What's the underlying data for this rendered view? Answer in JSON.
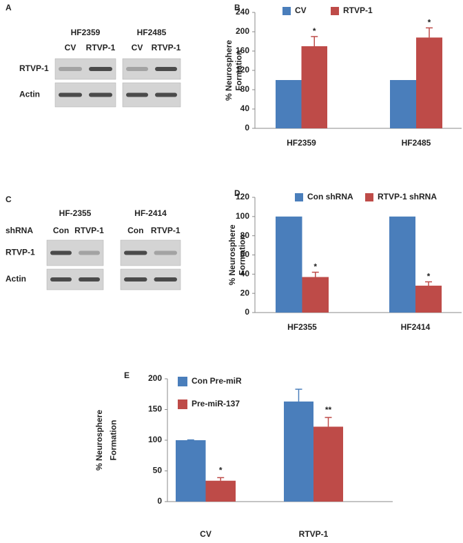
{
  "blots": [
    {
      "panel": "A",
      "groups": [
        {
          "name": "HF2359",
          "lanes": [
            "CV",
            "RTVP-1"
          ]
        },
        {
          "name": "HF2485",
          "lanes": [
            "CV",
            "RTVP-1"
          ]
        }
      ],
      "rows": [
        "RTVP-1",
        "Actin"
      ]
    },
    {
      "panel": "C",
      "row_header": "shRNA",
      "groups": [
        {
          "name": "HF-2355",
          "lanes": [
            "Con",
            "RTVP-1"
          ]
        },
        {
          "name": "HF-2414",
          "lanes": [
            "Con",
            "RTVP-1"
          ]
        }
      ],
      "rows": [
        "RTVP-1",
        "Actin"
      ]
    }
  ],
  "chart_data": [
    {
      "type": "bar",
      "panel": "B",
      "ylabel": [
        "% Neurosphere",
        "Formation"
      ],
      "categories": [
        "HF2359",
        "HF2485"
      ],
      "series": [
        {
          "name": "CV",
          "color": "#4a7ebb",
          "values": [
            100,
            100
          ]
        },
        {
          "name": "RTVP-1",
          "color": "#be4b48",
          "values": [
            170,
            188
          ],
          "errors": [
            20,
            20
          ],
          "annotations": [
            "*",
            "*"
          ]
        }
      ],
      "ylim": [
        0,
        240
      ],
      "yticks": [
        0,
        40,
        80,
        120,
        160,
        200,
        240
      ]
    },
    {
      "type": "bar",
      "panel": "D",
      "ylabel": [
        "% Neurosphere",
        "Formation"
      ],
      "categories": [
        "HF2355",
        "HF2414"
      ],
      "series": [
        {
          "name": "Con shRNA",
          "color": "#4a7ebb",
          "values": [
            100,
            100
          ]
        },
        {
          "name": "RTVP-1 shRNA",
          "color": "#be4b48",
          "values": [
            37,
            28
          ],
          "errors": [
            5,
            4
          ],
          "annotations": [
            "*",
            "*"
          ]
        }
      ],
      "ylim": [
        0,
        120
      ],
      "yticks": [
        0,
        20,
        40,
        60,
        80,
        100,
        120
      ]
    },
    {
      "type": "bar",
      "panel": "E",
      "ylabel": [
        "% Neurosphere",
        "Formation"
      ],
      "categories": [
        "CV",
        "RTVP-1"
      ],
      "series": [
        {
          "name": "Con Pre-miR",
          "color": "#4a7ebb",
          "values": [
            100,
            163
          ],
          "errors": [
            0.5,
            20
          ]
        },
        {
          "name": "Pre-miR-137",
          "color": "#be4b48",
          "values": [
            34,
            122
          ],
          "errors": [
            5,
            15
          ],
          "annotations": [
            "*",
            "**"
          ]
        }
      ],
      "ylim": [
        0,
        200
      ],
      "yticks": [
        0,
        50,
        100,
        150,
        200
      ]
    }
  ]
}
